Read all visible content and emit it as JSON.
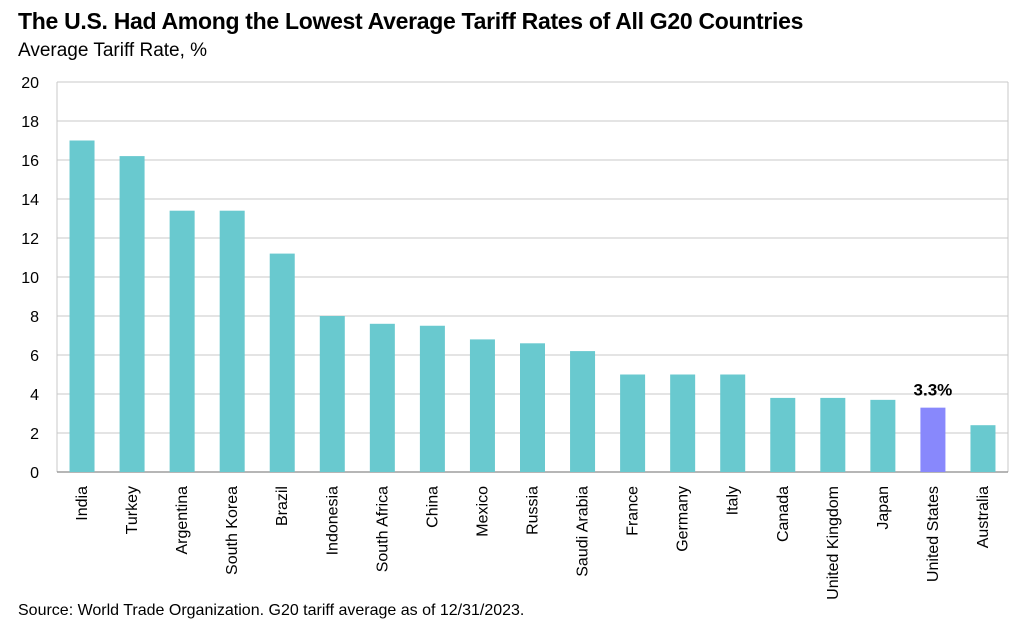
{
  "title": "The U.S. Had Among the Lowest Average Tariff Rates of All G20 Countries",
  "subtitle": "Average Tariff Rate, %",
  "source": "Source: World Trade Organization. G20 tariff average as of 12/31/2023.",
  "colors": {
    "bar": "#69c9cf",
    "highlight": "#8888fc",
    "grid": "#c8c8c8",
    "axis": "#8a8a8a"
  },
  "chart_data": {
    "type": "bar",
    "categories": [
      "India",
      "Turkey",
      "Argentina",
      "South Korea",
      "Brazil",
      "Indonesia",
      "South Africa",
      "China",
      "Mexico",
      "Russia",
      "Saudi Arabia",
      "France",
      "Germany",
      "Italy",
      "Canada",
      "United Kingdom",
      "Japan",
      "United States",
      "Australia"
    ],
    "values": [
      17.0,
      16.2,
      13.4,
      13.4,
      11.2,
      8.0,
      7.6,
      7.5,
      6.8,
      6.6,
      6.2,
      5.0,
      5.0,
      5.0,
      3.8,
      3.8,
      3.7,
      3.3,
      2.4
    ],
    "ylim": [
      0,
      20
    ],
    "yticks": [
      "0",
      "2",
      "4",
      "6",
      "8",
      "10",
      "12",
      "14",
      "16",
      "18",
      "20"
    ],
    "grid": true,
    "highlight_category": "United States",
    "annotations": [
      {
        "category": "United States",
        "text": "3.3%"
      }
    ]
  }
}
